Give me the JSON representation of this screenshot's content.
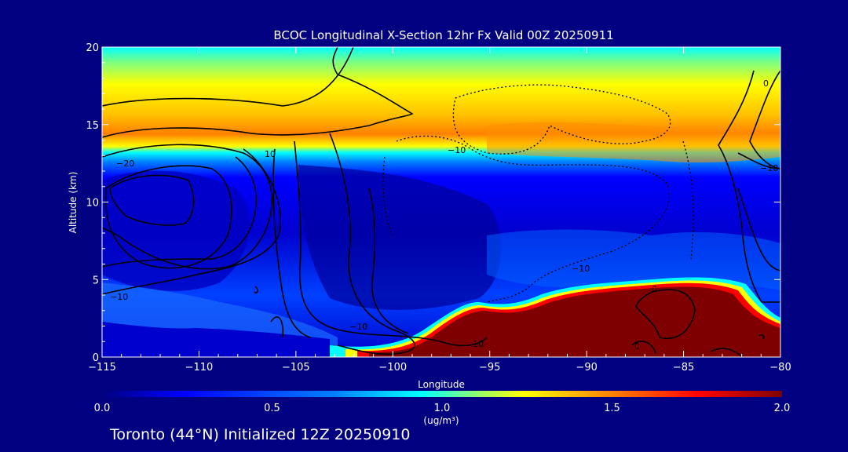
{
  "chart_data": {
    "type": "heatmap",
    "title": "BCOC Longitudinal X-Section 12hr  Fx Valid 00Z 20250911",
    "xlabel": "Longitude",
    "ylabel": "Altitude (km)",
    "xlim": [
      -115,
      -80
    ],
    "ylim": [
      0,
      20
    ],
    "x_ticks": [
      -115,
      -110,
      -105,
      -100,
      -95,
      -90,
      -85,
      -80
    ],
    "x_tick_labels": [
      "−115",
      "−110",
      "−105",
      "−100",
      "−95",
      "−90",
      "−85",
      "−80"
    ],
    "y_ticks": [
      0,
      5,
      10,
      15,
      20
    ],
    "y_tick_labels": [
      "0",
      "5",
      "10",
      "15",
      "20"
    ],
    "colorbar": {
      "min": 0.0,
      "max": 2.0,
      "tick_values": [
        0.0,
        0.5,
        1.0,
        1.5,
        2.0
      ],
      "tick_labels": [
        "0.0",
        "0.5",
        "1.0",
        "1.5",
        "2.0"
      ],
      "units_label": "(ug/m³)",
      "colors": [
        "#00007f",
        "#0000ff",
        "#007fff",
        "#00ffff",
        "#7fff7f",
        "#ffff00",
        "#ff7f00",
        "#ff0000",
        "#7f0000"
      ]
    },
    "field_description_points": {
      "stratospheric_max_band_km": [
        13.5,
        15.5
      ],
      "stratospheric_band_value": 1.3,
      "surface_plume_lon_range": [
        -99,
        -80
      ],
      "surface_plume_top_km": [
        1,
        4.5
      ],
      "surface_plume_value": 2.0
    },
    "contour_labels": [
      "−20",
      "10",
      "−10",
      "−10",
      "0",
      "−10",
      "0",
      "−10",
      "−10",
      "10",
      "0"
    ],
    "subtitle": "Toronto (44°N) Initialized 12Z 20250910"
  }
}
